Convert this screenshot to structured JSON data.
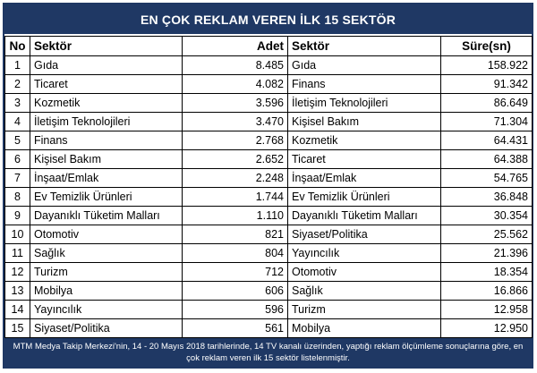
{
  "title": "EN ÇOK REKLAM VEREN İLK 15 SEKTÖR",
  "headers": {
    "no": "No",
    "sektor1": "Sektör",
    "adet": "Adet",
    "sektor2": "Sektör",
    "sure": "Süre(sn)"
  },
  "rows": [
    {
      "no": "1",
      "sektor1": "Gıda",
      "adet": "8.485",
      "sektor2": "Gıda",
      "sure": "158.922"
    },
    {
      "no": "2",
      "sektor1": "Ticaret",
      "adet": "4.082",
      "sektor2": "Finans",
      "sure": "91.342"
    },
    {
      "no": "3",
      "sektor1": "Kozmetik",
      "adet": "3.596",
      "sektor2": "İletişim Teknolojileri",
      "sure": "86.649"
    },
    {
      "no": "4",
      "sektor1": "İletişim Teknolojileri",
      "adet": "3.470",
      "sektor2": "Kişisel Bakım",
      "sure": "71.304"
    },
    {
      "no": "5",
      "sektor1": "Finans",
      "adet": "2.768",
      "sektor2": "Kozmetik",
      "sure": "64.431"
    },
    {
      "no": "6",
      "sektor1": "Kişisel Bakım",
      "adet": "2.652",
      "sektor2": "Ticaret",
      "sure": "64.388"
    },
    {
      "no": "7",
      "sektor1": "İnşaat/Emlak",
      "adet": "2.248",
      "sektor2": "İnşaat/Emlak",
      "sure": "54.765"
    },
    {
      "no": "8",
      "sektor1": "Ev Temizlik Ürünleri",
      "adet": "1.744",
      "sektor2": "Ev Temizlik Ürünleri",
      "sure": "36.848"
    },
    {
      "no": "9",
      "sektor1": "Dayanıklı Tüketim Malları",
      "adet": "1.110",
      "sektor2": "Dayanıklı Tüketim Malları",
      "sure": "30.354"
    },
    {
      "no": "10",
      "sektor1": "Otomotiv",
      "adet": "821",
      "sektor2": "Siyaset/Politika",
      "sure": "25.562"
    },
    {
      "no": "11",
      "sektor1": "Sağlık",
      "adet": "804",
      "sektor2": "Yayıncılık",
      "sure": "21.396"
    },
    {
      "no": "12",
      "sektor1": "Turizm",
      "adet": "712",
      "sektor2": "Otomotiv",
      "sure": "18.354"
    },
    {
      "no": "13",
      "sektor1": "Mobilya",
      "adet": "606",
      "sektor2": "Sağlık",
      "sure": "16.866"
    },
    {
      "no": "14",
      "sektor1": "Yayıncılık",
      "adet": "596",
      "sektor2": "Turizm",
      "sure": "12.958"
    },
    {
      "no": "15",
      "sektor1": "Siyaset/Politika",
      "adet": "561",
      "sektor2": "Mobilya",
      "sure": "12.950"
    }
  ],
  "footer_text": "MTM Medya Takip Merkezi'nin, 14 - 20 Mayıs 2018 tarihlerinde, 14 TV kanalı üzerinden,  yaptığı reklam ölçümleme sonuçlarına göre, en çok reklam veren ilk 15 sektör  listelenmiştir.",
  "colors": {
    "header_band": "#1f3864",
    "header_text": "#ffffff",
    "grid_line": "#000000"
  }
}
